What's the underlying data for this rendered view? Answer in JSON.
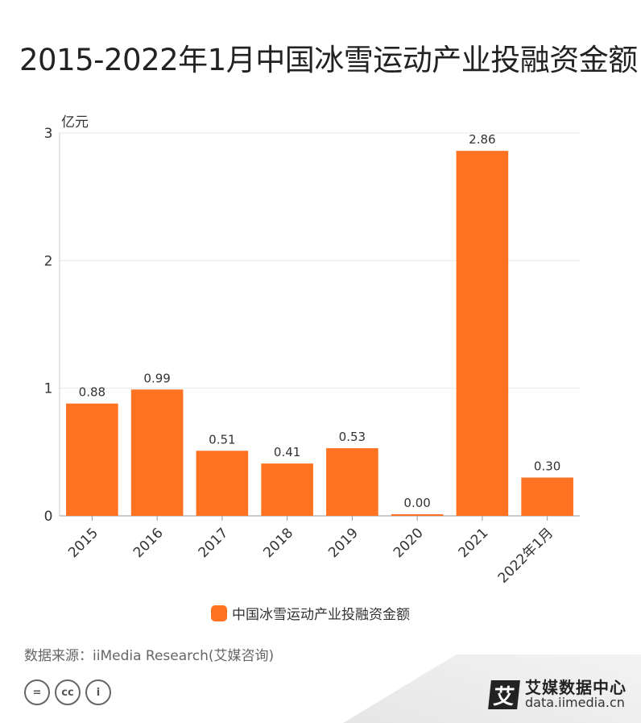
{
  "title": "2015-2022年1月中国冰雪运动产业投融资金额",
  "chart_data": {
    "type": "bar",
    "categories": [
      "2015",
      "2016",
      "2017",
      "2018",
      "2019",
      "2020",
      "2021",
      "2022年1月"
    ],
    "series": [
      {
        "name": "中国冰雪运动产业投融资金额",
        "values": [
          0.88,
          0.99,
          0.51,
          0.41,
          0.53,
          0.0,
          2.86,
          0.3
        ]
      }
    ],
    "data_labels": [
      "0.88",
      "0.99",
      "0.51",
      "0.41",
      "0.53",
      "0.00",
      "2.86",
      "0.30"
    ],
    "ylabel": "亿元",
    "ylim": [
      0,
      3
    ],
    "yticks": [
      "0",
      "1",
      "2",
      "3"
    ],
    "grid": true,
    "legend_position": "bottom",
    "bar_color": "#ff7222"
  },
  "legend": {
    "label": "中国冰雪运动产业投融资金额"
  },
  "source": "数据来源：iiMedia Research(艾媒咨询)",
  "cc_icons": [
    "=",
    "cc",
    "i"
  ],
  "brand": {
    "logo": "艾",
    "name": "艾媒数据中心",
    "url": "data.iimedia.cn"
  }
}
